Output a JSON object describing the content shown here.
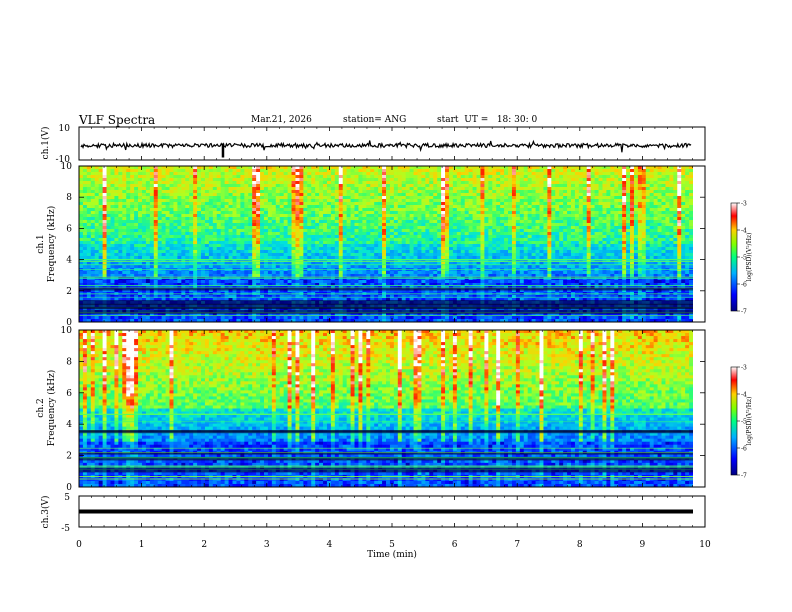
{
  "header": {
    "title": "VLF Spectra",
    "date": "Mar.21, 2026",
    "station": "station= ANG",
    "start": "start  UT =   18: 30: 0"
  },
  "chart_data": [
    {
      "id": "ch1-waveform",
      "type": "line",
      "ylabel": "ch.1(V)",
      "ylim": [
        -10,
        10
      ],
      "ytick_labels": [
        "10",
        "-10"
      ],
      "series": [
        {
          "name": "ch.1",
          "description_values_mean_V": 0.0
        }
      ]
    },
    {
      "id": "ch1-spectrogram",
      "type": "heatmap",
      "ylabel": "ch.1\nFrequency (kHz)",
      "ylabel_line1": "ch.1",
      "ylabel_line2": "Frequency (kHz)",
      "ylim": [
        0,
        10
      ],
      "ytick_labels": [
        "0",
        "2",
        "4",
        "6",
        "8",
        "10"
      ],
      "colorbar": {
        "label": "log(PSD)(V²/Hz)",
        "range": [
          -7,
          -3
        ],
        "tick_labels": [
          "-3",
          "-4",
          "-5",
          "-6",
          "-7"
        ]
      }
    },
    {
      "id": "ch2-spectrogram",
      "type": "heatmap",
      "ylabel_line1": "ch.2",
      "ylabel_line2": "Frequency (kHz)",
      "ylim": [
        0,
        10
      ],
      "ytick_labels": [
        "0",
        "2",
        "4",
        "6",
        "8",
        "10"
      ],
      "colorbar": {
        "label": "log(PSD)(V²/Hz)",
        "range": [
          -7,
          -3
        ],
        "tick_labels": [
          "-3",
          "-4",
          "-5",
          "-6",
          "-7"
        ]
      }
    },
    {
      "id": "ch3-waveform",
      "type": "line",
      "ylabel": "ch.3(V)",
      "ylim": [
        -5,
        5
      ],
      "ytick_labels": [
        "5",
        "-5"
      ],
      "series": [
        {
          "name": "ch.3",
          "constant_V": 0.0
        }
      ]
    }
  ],
  "xaxis": {
    "label": "Time  (min)",
    "range": [
      0,
      10
    ],
    "tick_labels": [
      "0",
      "1",
      "2",
      "3",
      "4",
      "5",
      "6",
      "7",
      "8",
      "9",
      "10"
    ]
  },
  "colors": {
    "colormap": [
      "#000080",
      "#0000ff",
      "#00a0ff",
      "#00e0e0",
      "#40ff60",
      "#d0ff20",
      "#ff8000",
      "#ff0000",
      "#ffffff"
    ]
  }
}
